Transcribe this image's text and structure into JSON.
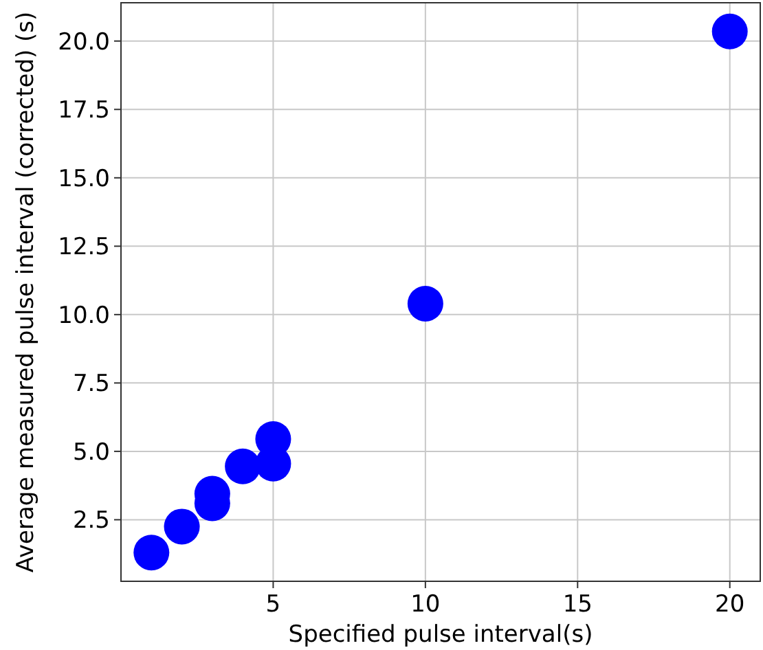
{
  "chart_data": {
    "type": "scatter",
    "xlabel": "Specified pulse interval(s)",
    "ylabel": "Average measured pulse interval (corrected) (s)",
    "x": [
      1,
      2,
      3,
      3,
      4,
      5,
      5,
      10,
      20
    ],
    "series": [
      {
        "color": "#0000ff",
        "values": [
          1.3,
          2.25,
          3.45,
          3.1,
          4.45,
          5.45,
          4.55,
          10.4,
          20.35
        ]
      }
    ],
    "xlim": [
      0,
      21
    ],
    "xticks": [
      5,
      10,
      15,
      20
    ],
    "ylim": [
      0.25,
      21.4
    ],
    "yticks": [
      {
        "value": 2.5,
        "label": "2.5"
      },
      {
        "value": 5,
        "label": "5.0"
      },
      {
        "value": 7.5,
        "label": "7.5"
      },
      {
        "value": 10,
        "label": "10.0"
      },
      {
        "value": 12.5,
        "label": "12.5"
      },
      {
        "value": 15,
        "label": "15.0"
      },
      {
        "value": 17.5,
        "label": "17.5"
      },
      {
        "value": 20,
        "label": "20.0"
      }
    ],
    "grid": true,
    "marker": "circle"
  }
}
